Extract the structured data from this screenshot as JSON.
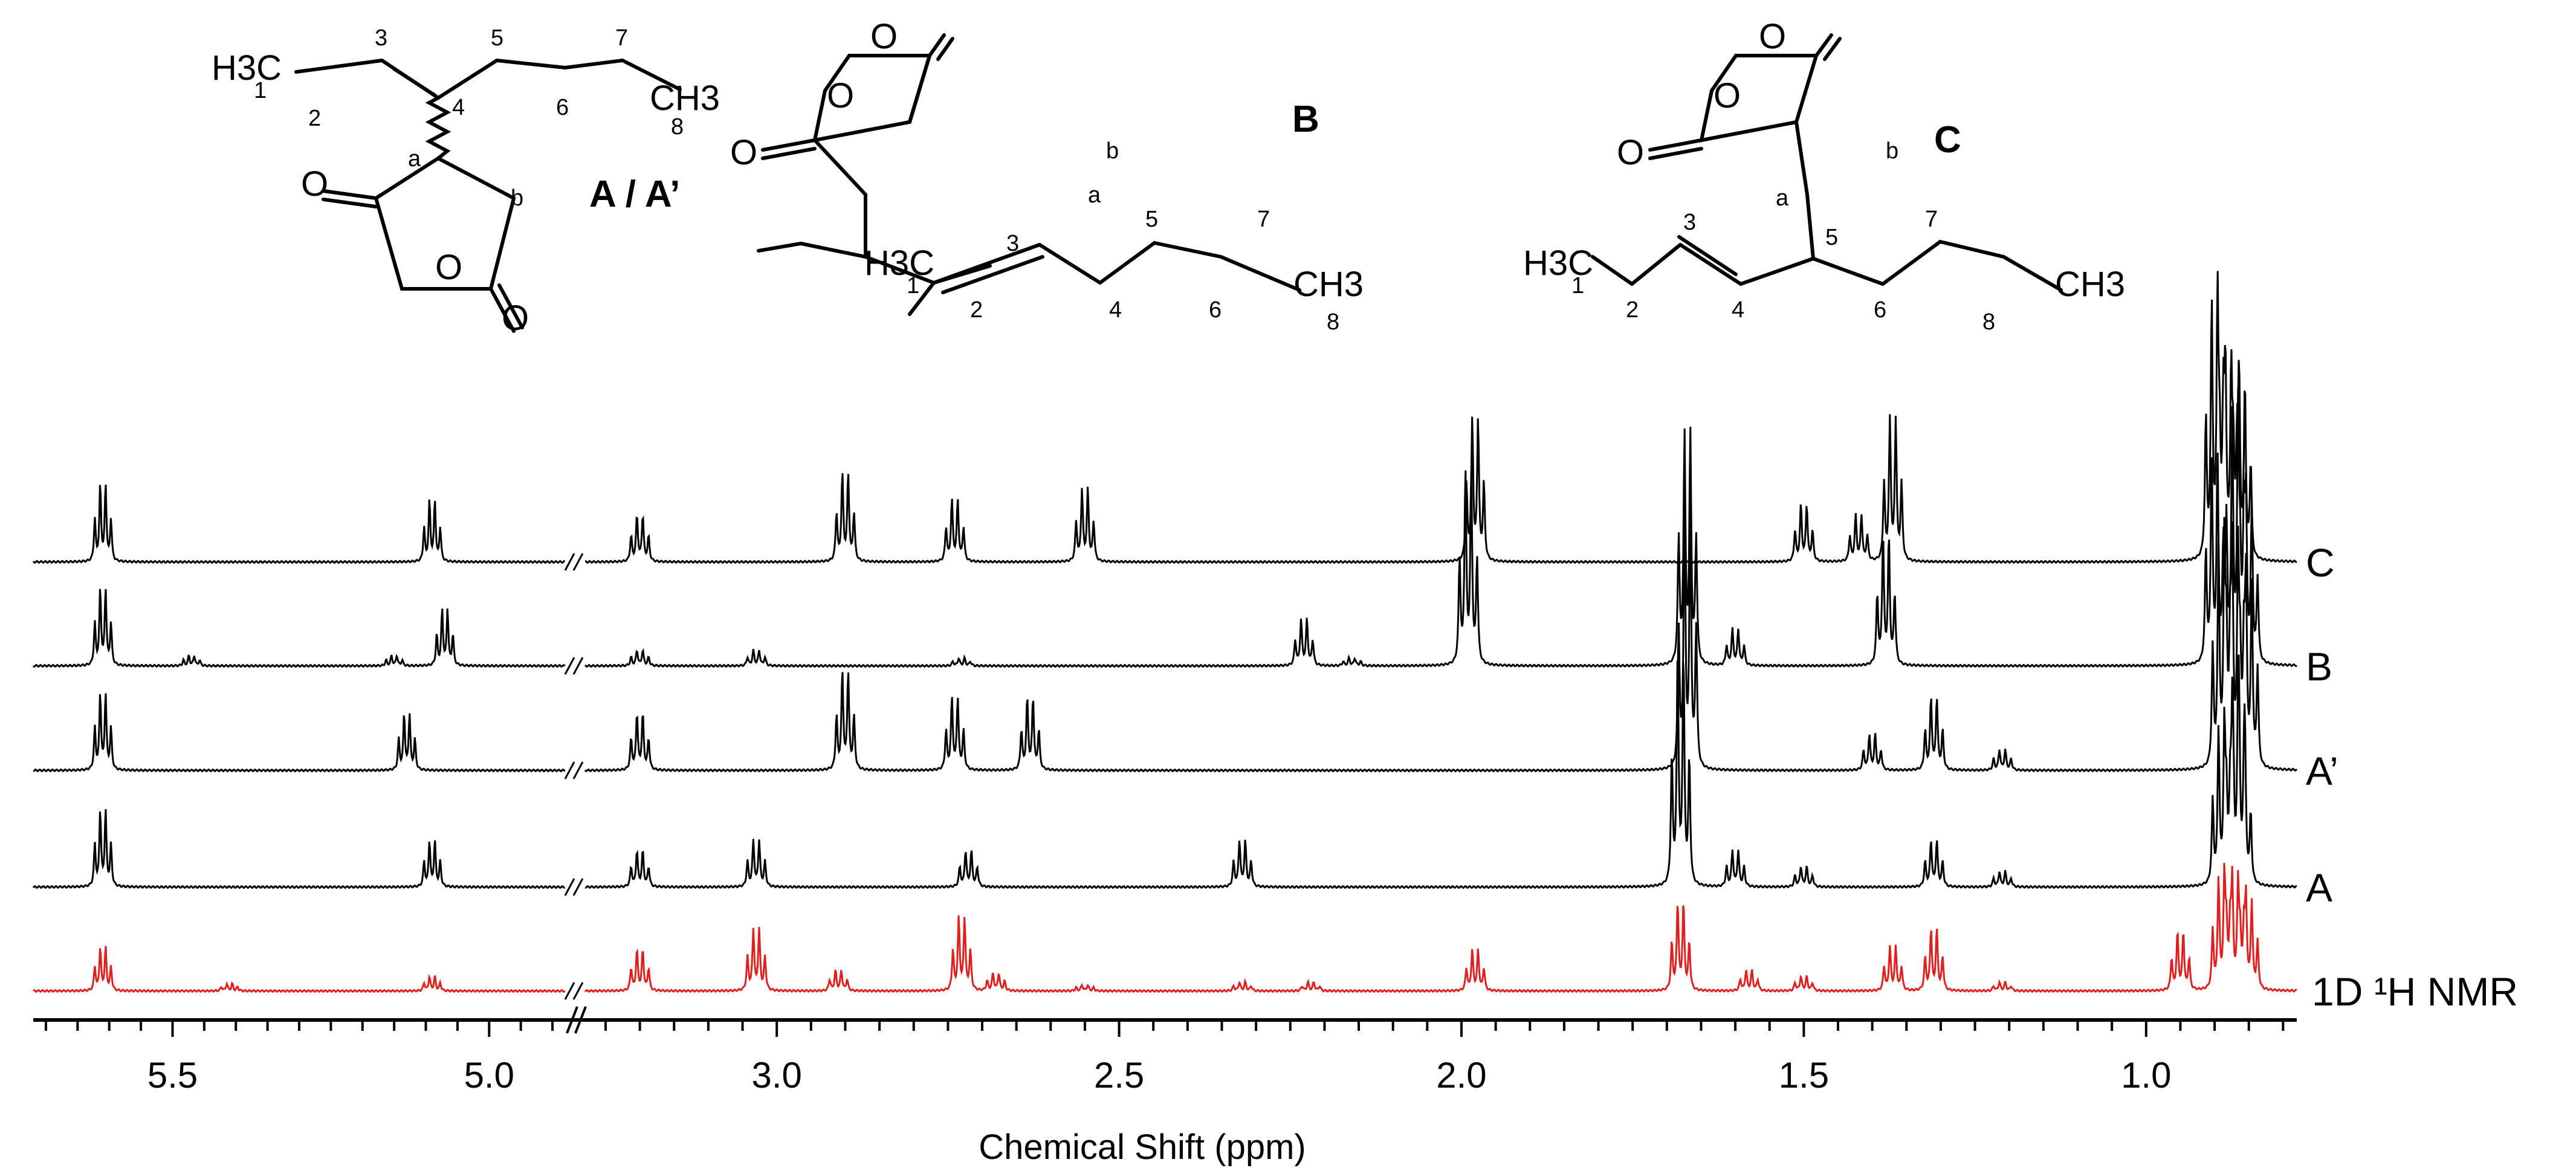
{
  "chart_data": {
    "type": "line",
    "xlabel": "Chemical Shift (ppm)",
    "x_axis": {
      "reversed": true,
      "broken": true,
      "segments": [
        {
          "from": 5.72,
          "to": 4.88
        },
        {
          "from": 3.28,
          "to": 0.78
        }
      ],
      "tick_labels": [
        "5.5",
        "5.0",
        "3.0",
        "2.5",
        "2.0",
        "1.5",
        "1.0"
      ]
    },
    "series": [
      {
        "name": "C",
        "color": "#000000",
        "peaks": [
          [
            5.61,
            0.3
          ],
          [
            5.09,
            0.24
          ],
          [
            3.2,
            0.18
          ],
          [
            2.9,
            0.34
          ],
          [
            2.74,
            0.24
          ],
          [
            2.55,
            0.28
          ],
          [
            1.98,
            0.55
          ],
          [
            1.5,
            0.22
          ],
          [
            1.42,
            0.18
          ],
          [
            1.37,
            0.55
          ],
          [
            0.9,
            1.0
          ],
          [
            0.88,
            0.7
          ],
          [
            0.86,
            0.68
          ]
        ]
      },
      {
        "name": "B",
        "color": "#000000",
        "peaks": [
          [
            5.61,
            0.3
          ],
          [
            5.47,
            0.04
          ],
          [
            5.15,
            0.04
          ],
          [
            5.07,
            0.22
          ],
          [
            3.2,
            0.06
          ],
          [
            3.03,
            0.06
          ],
          [
            2.73,
            0.03
          ],
          [
            2.23,
            0.18
          ],
          [
            2.16,
            0.03
          ],
          [
            1.99,
            0.75
          ],
          [
            1.67,
            0.9
          ],
          [
            1.6,
            0.14
          ],
          [
            1.38,
            0.5
          ],
          [
            0.9,
            0.8
          ],
          [
            0.87,
            0.95
          ],
          [
            0.85,
            0.6
          ]
        ]
      },
      {
        "name": "A’",
        "color": "#000000",
        "peaks": [
          [
            5.61,
            0.3
          ],
          [
            5.13,
            0.22
          ],
          [
            3.2,
            0.22
          ],
          [
            2.9,
            0.38
          ],
          [
            2.74,
            0.28
          ],
          [
            2.63,
            0.28
          ],
          [
            1.67,
            1.0
          ],
          [
            1.4,
            0.14
          ],
          [
            1.31,
            0.28
          ],
          [
            1.21,
            0.08
          ],
          [
            0.89,
            0.85
          ],
          [
            0.87,
            0.8
          ],
          [
            0.85,
            0.7
          ]
        ]
      },
      {
        "name": "A",
        "color": "#000000",
        "peaks": [
          [
            5.61,
            0.3
          ],
          [
            5.09,
            0.18
          ],
          [
            3.2,
            0.14
          ],
          [
            3.03,
            0.18
          ],
          [
            2.72,
            0.14
          ],
          [
            2.32,
            0.18
          ],
          [
            1.68,
            0.9
          ],
          [
            1.6,
            0.14
          ],
          [
            1.5,
            0.08
          ],
          [
            1.31,
            0.18
          ],
          [
            1.21,
            0.06
          ],
          [
            0.89,
            0.6
          ],
          [
            0.87,
            0.55
          ],
          [
            0.86,
            0.5
          ]
        ]
      },
      {
        "name": "1D ¹H NMR",
        "color": "#e0201e",
        "peaks": [
          [
            5.61,
            0.3
          ],
          [
            5.41,
            0.05
          ],
          [
            5.09,
            0.1
          ],
          [
            3.2,
            0.28
          ],
          [
            3.03,
            0.42
          ],
          [
            2.91,
            0.14
          ],
          [
            2.73,
            0.5
          ],
          [
            2.68,
            0.12
          ],
          [
            2.55,
            0.04
          ],
          [
            2.32,
            0.06
          ],
          [
            2.22,
            0.06
          ],
          [
            1.98,
            0.28
          ],
          [
            1.68,
            0.6
          ],
          [
            1.58,
            0.14
          ],
          [
            1.5,
            0.1
          ],
          [
            1.37,
            0.3
          ],
          [
            1.31,
            0.42
          ],
          [
            1.21,
            0.06
          ],
          [
            0.95,
            0.4
          ],
          [
            0.89,
            0.75
          ],
          [
            0.87,
            0.7
          ],
          [
            0.85,
            0.6
          ]
        ]
      }
    ]
  },
  "structures": [
    {
      "label": "A / A’",
      "atoms": {
        "ch3": "H3C",
        "n1": "1",
        "n2": "2",
        "n3": "3",
        "n4": "4",
        "n5": "5",
        "n6": "6",
        "n7": "7",
        "n8": "8",
        "term": "CH3",
        "a": "a",
        "b": "b"
      }
    },
    {
      "label": "B",
      "atoms": {
        "ch3": "H3C",
        "n1": "1",
        "n2": "2",
        "n3": "3",
        "n4": "4",
        "n5": "5",
        "n6": "6",
        "n7": "7",
        "n8": "8",
        "term": "CH3",
        "a": "a",
        "b": "b"
      }
    },
    {
      "label": "C",
      "atoms": {
        "ch3": "H3C",
        "n1": "1",
        "n2": "2",
        "n3": "3",
        "n4": "4",
        "n5": "5",
        "n6": "6",
        "n7": "7",
        "n8": "8",
        "term": "CH3",
        "a": "a",
        "b": "b"
      }
    }
  ],
  "atom_symbols": {
    "oxygen": "O"
  }
}
